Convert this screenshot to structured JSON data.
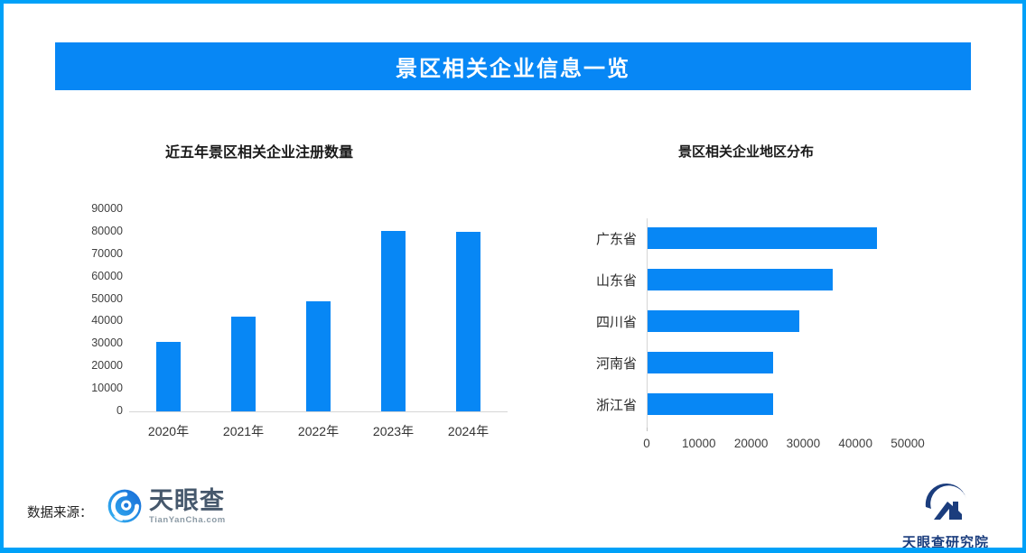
{
  "page": {
    "banner_title": "景区相关企业信息一览",
    "colors": {
      "page_border": "#00a1f8",
      "banner_bg": "#0787f5",
      "bar": "#0787f5",
      "axis_line": "#d6d6d6",
      "logo_navy": "#1b3d7d",
      "logo_blue_light": "#35b5f3",
      "logo_blue_dark": "#1769d6"
    },
    "footer": {
      "source_label": "数据来源：",
      "source_logo_name": "天眼查",
      "source_logo_url": "TianYanCha.com",
      "research_institute": "天眼查研究院"
    }
  },
  "chart_data": [
    {
      "type": "bar",
      "orientation": "vertical",
      "title": "近五年景区相关企业注册数量",
      "categories": [
        "2020年",
        "2021年",
        "2022年",
        "2023年",
        "2024年"
      ],
      "values": [
        31000,
        42000,
        49000,
        80500,
        80000
      ],
      "ylabel": "",
      "xlabel": "",
      "ylim": [
        0,
        90000
      ],
      "ytick_step": 10000,
      "grid": false,
      "legend": false
    },
    {
      "type": "bar",
      "orientation": "horizontal",
      "title": "景区相关企业地区分布",
      "categories": [
        "广东省",
        "山东省",
        "四川省",
        "河南省",
        "浙江省"
      ],
      "values": [
        44000,
        35500,
        29000,
        24000,
        24000
      ],
      "ylabel": "",
      "xlabel": "",
      "xlim": [
        0,
        50000
      ],
      "xtick_step": 10000,
      "grid": false,
      "legend": false
    }
  ]
}
